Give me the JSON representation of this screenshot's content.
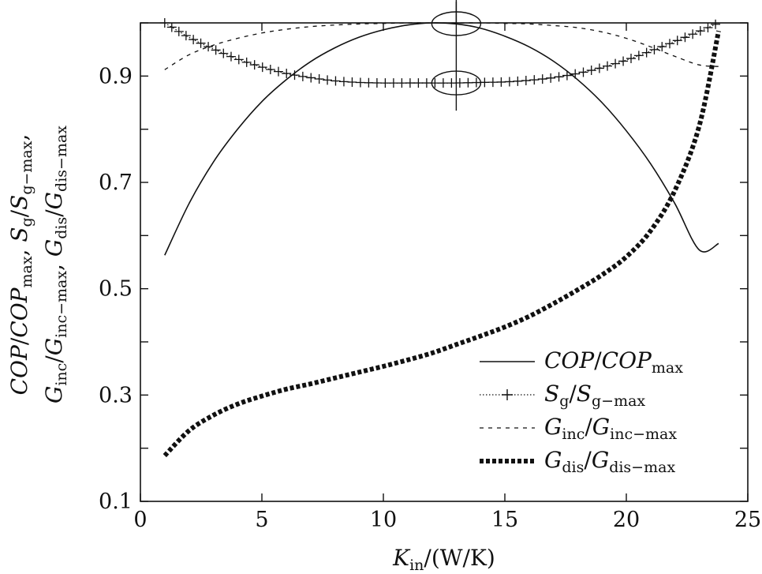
{
  "chart_data": {
    "type": "line",
    "xlabel": "K_in/(W/K)",
    "ylabel_line1": "COP/COP_max, S_g/S_g-max,",
    "ylabel_line2": "G_inc/G_inc-max, G_dis/G_dis-max",
    "xlim": [
      0,
      25
    ],
    "ylim": [
      0.1,
      1.0
    ],
    "x_ticks": [
      0,
      5,
      10,
      15,
      20,
      25
    ],
    "x_tick_labels": [
      "0",
      "5",
      "10",
      "15",
      "20",
      "25"
    ],
    "y_ticks": [
      0.1,
      0.3,
      0.5,
      0.7,
      0.9
    ],
    "y_tick_labels": [
      "0.1",
      "0.3",
      "0.5",
      "0.7",
      "0.9"
    ],
    "series": [
      {
        "name": "COP/COP_max",
        "style": "solid",
        "x": [
          1,
          2,
          3,
          4,
          5,
          6,
          7,
          8,
          9,
          10,
          11,
          12,
          13,
          14,
          15,
          16,
          17,
          18,
          19,
          20,
          21,
          22,
          23,
          23.8
        ],
        "y": [
          0.563,
          0.66,
          0.738,
          0.8,
          0.852,
          0.893,
          0.927,
          0.953,
          0.973,
          0.987,
          0.996,
          1.0,
          0.998,
          0.99,
          0.975,
          0.955,
          0.928,
          0.893,
          0.85,
          0.797,
          0.735,
          0.66,
          0.573,
          0.585
        ]
      },
      {
        "name": "S_g/S_g-max",
        "style": "dotted-plus",
        "x": [
          1,
          2,
          3,
          4,
          5,
          6,
          7,
          8,
          9,
          10,
          11,
          12,
          13,
          14,
          15,
          16,
          17,
          18,
          19,
          20,
          21,
          22,
          23,
          23.8
        ],
        "y": [
          1.0,
          0.973,
          0.951,
          0.932,
          0.917,
          0.905,
          0.897,
          0.891,
          0.888,
          0.887,
          0.887,
          0.887,
          0.887,
          0.888,
          0.889,
          0.892,
          0.897,
          0.905,
          0.916,
          0.93,
          0.947,
          0.965,
          0.984,
          1.0
        ]
      },
      {
        "name": "G_inc/G_inc-max",
        "style": "dashed",
        "x": [
          1,
          2,
          3,
          4,
          5,
          6,
          7,
          8,
          9,
          10,
          11,
          12,
          13,
          14,
          15,
          16,
          17,
          18,
          19,
          20,
          21,
          22,
          23,
          23.8
        ],
        "y": [
          0.912,
          0.94,
          0.958,
          0.971,
          0.981,
          0.988,
          0.993,
          0.996,
          0.998,
          0.999,
          1.0,
          1.0,
          1.0,
          1.0,
          0.999,
          0.998,
          0.995,
          0.991,
          0.983,
          0.971,
          0.955,
          0.937,
          0.921,
          0.918
        ]
      },
      {
        "name": "G_dis/G_dis-max",
        "style": "thick-dotted",
        "x": [
          1,
          2,
          3,
          4,
          5,
          6,
          7,
          8,
          9,
          10,
          11,
          12,
          13,
          14,
          15,
          16,
          17,
          18,
          19,
          20,
          21,
          22,
          23,
          23.8
        ],
        "y": [
          0.186,
          0.233,
          0.262,
          0.283,
          0.298,
          0.311,
          0.321,
          0.332,
          0.343,
          0.354,
          0.366,
          0.379,
          0.395,
          0.411,
          0.428,
          0.448,
          0.472,
          0.498,
          0.526,
          0.56,
          0.609,
          0.685,
          0.806,
          0.985
        ]
      }
    ],
    "annotations": [
      {
        "type": "ellipse",
        "cx": 13,
        "cy": 0.9985
      },
      {
        "type": "ellipse",
        "cx": 13,
        "cy": 0.887
      },
      {
        "type": "vline",
        "x": 13,
        "y1": 0.835,
        "y2": 1.04
      }
    ]
  },
  "legend": [
    {
      "main1": "COP",
      "sep": "/",
      "main2": "COP",
      "sub": "max"
    },
    {
      "main1": "S",
      "sub1": "g",
      "sep": "/",
      "main2": "S",
      "sub": "g−max"
    },
    {
      "main1": "G",
      "sub1": "inc",
      "sep": "/",
      "main2": "G",
      "sub": "inc−max"
    },
    {
      "main1": "G",
      "sub1": "dis",
      "sep": "/",
      "main2": "G",
      "sub": "dis−max"
    }
  ]
}
